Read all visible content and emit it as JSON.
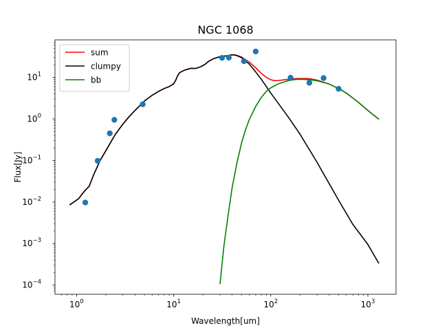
{
  "chart_data": {
    "type": "line",
    "title": "NGC 1068",
    "xlabel": "Wavelength[um]",
    "ylabel": "Flux[Jy]",
    "x_scale": "log",
    "y_scale": "log",
    "xlim": [
      0.6,
      1950
    ],
    "ylim": [
      6e-05,
      80
    ],
    "grid": false,
    "legend_position": "top-left",
    "x_ticks": [
      {
        "value": 1,
        "base": "10",
        "exp": "0"
      },
      {
        "value": 10,
        "base": "10",
        "exp": "1"
      },
      {
        "value": 100,
        "base": "10",
        "exp": "2"
      },
      {
        "value": 1000,
        "base": "10",
        "exp": "3"
      }
    ],
    "y_ticks": [
      {
        "value": 0.0001,
        "base": "10",
        "exp": "−4"
      },
      {
        "value": 0.001,
        "base": "10",
        "exp": "−3"
      },
      {
        "value": 0.01,
        "base": "10",
        "exp": "−2"
      },
      {
        "value": 0.1,
        "base": "10",
        "exp": "−1"
      },
      {
        "value": 1,
        "base": "10",
        "exp": "0"
      },
      {
        "value": 10,
        "base": "10",
        "exp": "1"
      }
    ],
    "series": [
      {
        "name": "sum",
        "kind": "line",
        "color": "#ff0000",
        "points": [
          [
            0.85,
            0.0085
          ],
          [
            1.05,
            0.012
          ],
          [
            1.2,
            0.018
          ],
          [
            1.35,
            0.024
          ],
          [
            1.5,
            0.045
          ],
          [
            1.75,
            0.1
          ],
          [
            2.0,
            0.17
          ],
          [
            2.3,
            0.3
          ],
          [
            2.5,
            0.42
          ],
          [
            3.0,
            0.75
          ],
          [
            3.5,
            1.15
          ],
          [
            4.0,
            1.6
          ],
          [
            5.0,
            2.7
          ],
          [
            6.0,
            3.7
          ],
          [
            7.0,
            4.6
          ],
          [
            8.0,
            5.4
          ],
          [
            9.0,
            6.0
          ],
          [
            10.0,
            7.0
          ],
          [
            10.5,
            8.5
          ],
          [
            11.0,
            11.0
          ],
          [
            11.5,
            13.0
          ],
          [
            13.0,
            15.0
          ],
          [
            15.0,
            16.5
          ],
          [
            17.0,
            16.5
          ],
          [
            19.0,
            18.0
          ],
          [
            21.0,
            20.5
          ],
          [
            23.0,
            24.5
          ],
          [
            26.0,
            28.5
          ],
          [
            30.0,
            31.5
          ],
          [
            35.0,
            33.0
          ],
          [
            40.0,
            35.0
          ],
          [
            44.0,
            34.5
          ],
          [
            50.0,
            31.0
          ],
          [
            60.0,
            23.5
          ],
          [
            70.0,
            17.0
          ],
          [
            80.0,
            12.5
          ],
          [
            90.0,
            10.0
          ],
          [
            100.0,
            8.8
          ],
          [
            110.0,
            8.3
          ],
          [
            120.0,
            8.4
          ],
          [
            140.0,
            8.8
          ],
          [
            160.0,
            9.1
          ],
          [
            190.0,
            9.4
          ],
          [
            220.0,
            9.4
          ],
          [
            250.0,
            9.3
          ],
          [
            300.0,
            8.6
          ],
          [
            400.0,
            6.9
          ],
          [
            500.0,
            5.4
          ],
          [
            600.0,
            4.2
          ],
          [
            800.0,
            2.5
          ],
          [
            1000.0,
            1.6
          ],
          [
            1300.0,
            0.98
          ]
        ]
      },
      {
        "name": "clumpy",
        "kind": "line",
        "color": "#000000",
        "points": [
          [
            0.85,
            0.0085
          ],
          [
            1.05,
            0.012
          ],
          [
            1.2,
            0.018
          ],
          [
            1.35,
            0.024
          ],
          [
            1.5,
            0.045
          ],
          [
            1.75,
            0.1
          ],
          [
            2.0,
            0.17
          ],
          [
            2.3,
            0.3
          ],
          [
            2.5,
            0.42
          ],
          [
            3.0,
            0.75
          ],
          [
            3.5,
            1.15
          ],
          [
            4.0,
            1.6
          ],
          [
            5.0,
            2.7
          ],
          [
            6.0,
            3.7
          ],
          [
            7.0,
            4.6
          ],
          [
            8.0,
            5.4
          ],
          [
            9.0,
            6.0
          ],
          [
            10.0,
            7.0
          ],
          [
            10.5,
            8.5
          ],
          [
            11.0,
            11.0
          ],
          [
            11.5,
            13.0
          ],
          [
            13.0,
            15.0
          ],
          [
            15.0,
            16.5
          ],
          [
            17.0,
            16.5
          ],
          [
            19.0,
            18.0
          ],
          [
            21.0,
            20.5
          ],
          [
            23.0,
            24.5
          ],
          [
            26.0,
            28.5
          ],
          [
            30.0,
            31.5
          ],
          [
            35.0,
            33.0
          ],
          [
            40.0,
            35.0
          ],
          [
            44.0,
            34.0
          ],
          [
            50.0,
            30.0
          ],
          [
            60.0,
            21.0
          ],
          [
            70.0,
            13.5
          ],
          [
            80.0,
            9.0
          ],
          [
            100.0,
            4.2
          ],
          [
            150.0,
            1.15
          ],
          [
            200.0,
            0.43
          ],
          [
            300.0,
            0.09
          ],
          [
            500.0,
            0.011
          ],
          [
            700.0,
            0.0029
          ],
          [
            1000.0,
            0.00095
          ],
          [
            1300.0,
            0.00033
          ]
        ]
      },
      {
        "name": "bb",
        "kind": "line",
        "color": "#008000",
        "points": [
          [
            30,
            0.000105
          ],
          [
            33,
            0.0009
          ],
          [
            36,
            0.004
          ],
          [
            40,
            0.022
          ],
          [
            45,
            0.09
          ],
          [
            50,
            0.26
          ],
          [
            55,
            0.55
          ],
          [
            60,
            0.95
          ],
          [
            70,
            2.0
          ],
          [
            80,
            3.3
          ],
          [
            90,
            4.6
          ],
          [
            100,
            5.6
          ],
          [
            120,
            7.0
          ],
          [
            150,
            8.3
          ],
          [
            180,
            8.9
          ],
          [
            210,
            9.0
          ],
          [
            250,
            8.8
          ],
          [
            300,
            8.3
          ],
          [
            400,
            6.9
          ],
          [
            500,
            5.4
          ],
          [
            600,
            4.2
          ],
          [
            800,
            2.5
          ],
          [
            1000,
            1.6
          ],
          [
            1300,
            0.98
          ]
        ]
      },
      {
        "name": "",
        "kind": "scatter",
        "color": "#1f77b4",
        "points": [
          [
            1.23,
            0.0097
          ],
          [
            1.65,
            0.098
          ],
          [
            2.2,
            0.45
          ],
          [
            2.45,
            0.95
          ],
          [
            4.8,
            2.25
          ],
          [
            31.5,
            29.5
          ],
          [
            37,
            30.0
          ],
          [
            53,
            24.5
          ],
          [
            70,
            42.0
          ],
          [
            160,
            9.8
          ],
          [
            250,
            7.4
          ],
          [
            350,
            9.6
          ],
          [
            500,
            5.3
          ]
        ]
      }
    ]
  }
}
